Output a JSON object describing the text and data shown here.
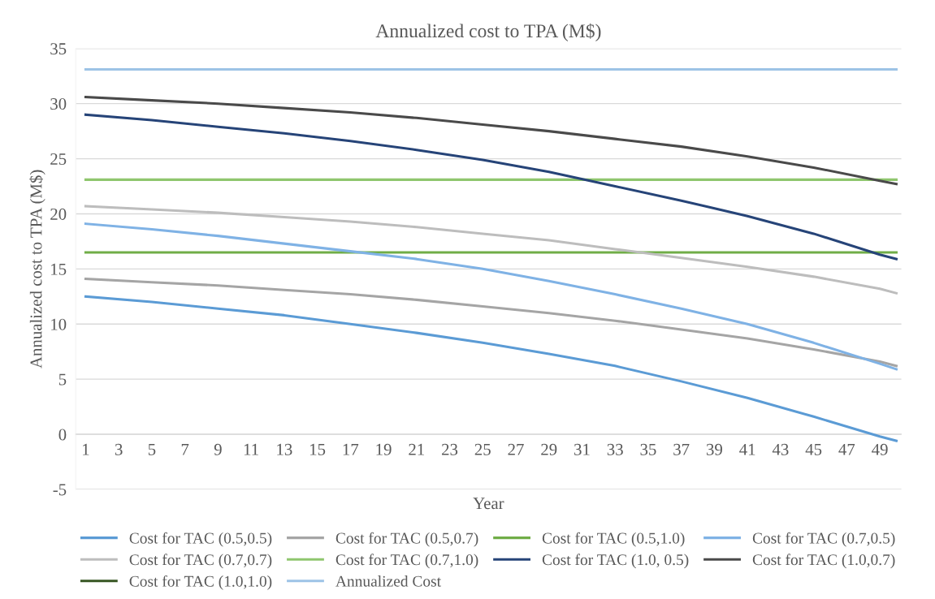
{
  "chart_data": {
    "type": "line",
    "title": "Annualized cost to TPA (M$)",
    "xlabel": "Year",
    "ylabel": "Annualized cost to TPA (M$)",
    "x": [
      1,
      5,
      9,
      13,
      17,
      21,
      25,
      29,
      33,
      37,
      41,
      45,
      49,
      50
    ],
    "series": [
      {
        "name": "Cost for TAC (0.5,0.5)",
        "color": "#5b9bd5",
        "values": [
          12.5,
          12.0,
          11.4,
          10.8,
          10.0,
          9.2,
          8.3,
          7.3,
          6.2,
          4.8,
          3.3,
          1.6,
          -0.2,
          -0.6
        ]
      },
      {
        "name": "Cost for TAC (0.5,0.7)",
        "color": "#a5a5a5",
        "values": [
          14.1,
          13.8,
          13.5,
          13.1,
          12.7,
          12.2,
          11.6,
          11.0,
          10.3,
          9.5,
          8.7,
          7.7,
          6.6,
          6.2
        ]
      },
      {
        "name": "Cost for TAC (0.5,1.0)",
        "color": "#70ad47",
        "values": [
          16.5,
          16.5,
          16.5,
          16.5,
          16.5,
          16.5,
          16.5,
          16.5,
          16.5,
          16.5,
          16.5,
          16.5,
          16.5,
          16.5
        ]
      },
      {
        "name": "Cost for TAC (0.7,0.5)",
        "color": "#7fb2e5",
        "values": [
          19.1,
          18.6,
          18.0,
          17.3,
          16.6,
          15.9,
          15.0,
          13.9,
          12.7,
          11.4,
          10.0,
          8.3,
          6.4,
          5.9
        ]
      },
      {
        "name": "Cost for TAC (0.7,0.7)",
        "color": "#bdbdbd",
        "values": [
          20.7,
          20.4,
          20.1,
          19.7,
          19.3,
          18.8,
          18.2,
          17.6,
          16.8,
          16.0,
          15.2,
          14.3,
          13.2,
          12.8
        ]
      },
      {
        "name": "Cost for TAC (0.7,1.0)",
        "color": "#8fc66e",
        "values": [
          23.1,
          23.1,
          23.1,
          23.1,
          23.1,
          23.1,
          23.1,
          23.1,
          23.1,
          23.1,
          23.1,
          23.1,
          23.1,
          23.1
        ]
      },
      {
        "name": "Cost for TAC (1.0, 0.5)",
        "color": "#264478",
        "values": [
          29.0,
          28.5,
          27.9,
          27.3,
          26.6,
          25.8,
          24.9,
          23.8,
          22.5,
          21.2,
          19.8,
          18.2,
          16.3,
          15.9
        ]
      },
      {
        "name": "Cost for TAC (1.0,0.7)",
        "color": "#4a4a4a",
        "values": [
          30.6,
          30.3,
          30.0,
          29.6,
          29.2,
          28.7,
          28.1,
          27.5,
          26.8,
          26.1,
          25.2,
          24.2,
          23.0,
          22.7
        ]
      },
      {
        "name": "Cost for TAC (1.0,1.0)",
        "color": "#375623",
        "values": [
          null,
          null,
          null,
          null,
          null,
          null,
          null,
          null,
          null,
          null,
          null,
          null,
          null,
          null
        ]
      },
      {
        "name": "Annualized Cost",
        "color": "#9dc3e6",
        "values": [
          33.1,
          33.1,
          33.1,
          33.1,
          33.1,
          33.1,
          33.1,
          33.1,
          33.1,
          33.1,
          33.1,
          33.1,
          33.1,
          33.1
        ]
      }
    ],
    "xlim": [
      0.4,
      50.3
    ],
    "xticks": [
      1,
      3,
      5,
      7,
      9,
      11,
      13,
      15,
      17,
      19,
      21,
      23,
      25,
      27,
      29,
      31,
      33,
      35,
      37,
      39,
      41,
      43,
      45,
      47,
      49
    ],
    "ylim": [
      -5,
      35
    ],
    "yticks": [
      -5,
      0,
      5,
      10,
      15,
      20,
      25,
      30,
      35
    ],
    "grid": "y",
    "legend": "bottom",
    "marker": "none",
    "line_style": "solid"
  }
}
